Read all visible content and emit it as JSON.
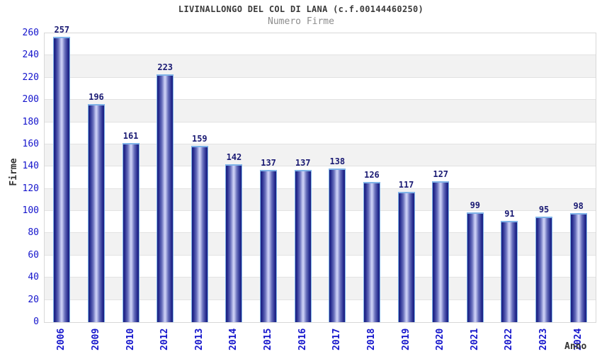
{
  "window": {
    "background": "#ffffff"
  },
  "chart_data": {
    "type": "bar",
    "title": "LIVINALLONGO DEL COL DI LANA (c.f.00144460250)",
    "subtitle": "Numero Firme",
    "xlabel": "Anno",
    "ylabel": "Firme",
    "categories": [
      "2006",
      "2009",
      "2010",
      "2012",
      "2013",
      "2014",
      "2015",
      "2016",
      "2017",
      "2018",
      "2019",
      "2020",
      "2021",
      "2022",
      "2023",
      "2024"
    ],
    "values": [
      257,
      196,
      161,
      223,
      159,
      142,
      137,
      137,
      138,
      126,
      117,
      127,
      99,
      91,
      95,
      98
    ],
    "ylim": [
      0,
      260
    ],
    "ytick_step": 20,
    "grid": true,
    "legend_position": "none",
    "plot_background": "alternating white and light-gray horizontal bands",
    "bar_labels_shown": true,
    "x_labels_rotation": "vertical bottom-to-top"
  },
  "colors": {
    "axis_label": "#1414cc",
    "value_label": "#1a1a73",
    "bar_dark": "#1d2280",
    "bar_mid": "#6a71bd",
    "bar_light": "#cdd1f6",
    "bar_cap": "#7fb3e8",
    "stripe": "#f2f2f2",
    "gridline": "#e2e2e2",
    "plot_border": "#d8d8d8",
    "title": "#3a3a3a",
    "subtitle": "#8c8c8c",
    "axis_title": "#333333"
  }
}
